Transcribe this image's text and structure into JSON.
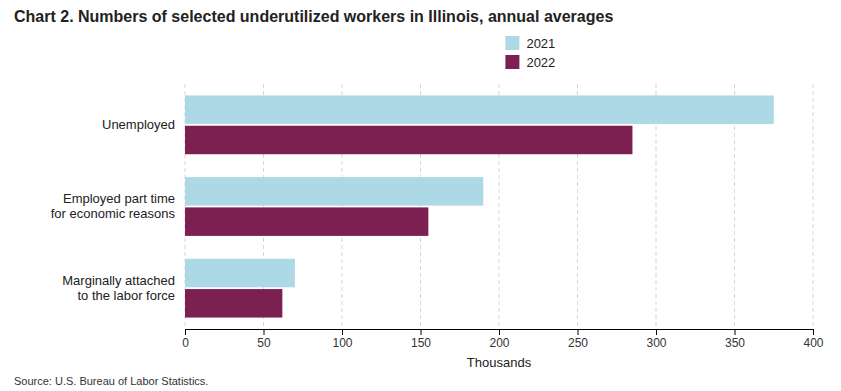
{
  "chart_data": {
    "type": "bar",
    "orientation": "horizontal",
    "title": "Chart 2. Numbers of selected underutilized workers in Illinois, annual averages",
    "categories": [
      "Unemployed",
      "Employed part time\nfor economic reasons",
      "Marginally attached\nto the labor force"
    ],
    "series": [
      {
        "name": "2021",
        "color": "#add8e6",
        "values": [
          375,
          190,
          70
        ]
      },
      {
        "name": "2022",
        "color": "#7b2050",
        "values": [
          285,
          155,
          62
        ]
      }
    ],
    "xlabel": "Thousands",
    "xlim": [
      0,
      400
    ],
    "xticks": [
      0,
      50,
      100,
      150,
      200,
      250,
      300,
      350,
      400
    ],
    "grid": true,
    "legend": "top",
    "annotations": [
      "Source: U.S. Bureau of Labor Statistics."
    ]
  }
}
